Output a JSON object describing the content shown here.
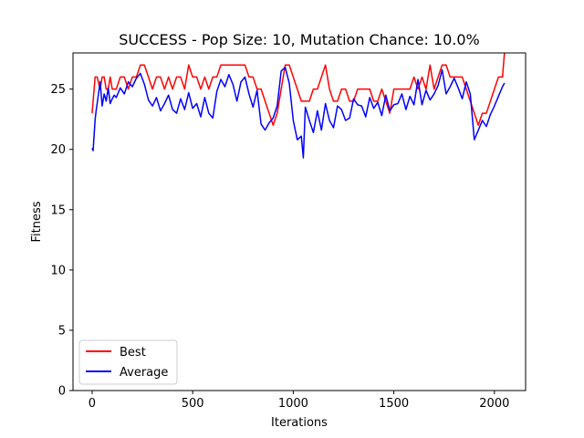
{
  "chart_data": {
    "type": "line",
    "title": "SUCCESS - Pop Size: 10, Mutation Chance: 10.0%",
    "xlabel": "Iterations",
    "ylabel": "Fitness",
    "xlim": [
      -95,
      2155
    ],
    "ylim": [
      0,
      28
    ],
    "x_ticks": [
      0,
      500,
      1000,
      1500,
      2000
    ],
    "y_ticks": [
      0,
      5,
      10,
      15,
      20,
      25
    ],
    "grid": false,
    "legend_position": "lower-left",
    "series": [
      {
        "name": "Best",
        "color": "#ff0000",
        "x": [
          0,
          15,
          25,
          40,
          50,
          60,
          70,
          80,
          90,
          100,
          110,
          120,
          140,
          160,
          180,
          200,
          220,
          240,
          260,
          280,
          300,
          320,
          340,
          360,
          380,
          400,
          420,
          440,
          460,
          480,
          500,
          520,
          540,
          560,
          580,
          600,
          620,
          640,
          660,
          680,
          700,
          720,
          740,
          760,
          780,
          800,
          820,
          840,
          860,
          880,
          900,
          920,
          940,
          960,
          980,
          1000,
          1020,
          1040,
          1060,
          1080,
          1100,
          1120,
          1140,
          1160,
          1180,
          1200,
          1220,
          1240,
          1260,
          1280,
          1300,
          1320,
          1340,
          1360,
          1380,
          1400,
          1420,
          1440,
          1460,
          1480,
          1500,
          1520,
          1540,
          1560,
          1580,
          1600,
          1620,
          1640,
          1660,
          1680,
          1700,
          1720,
          1740,
          1760,
          1780,
          1800,
          1820,
          1840,
          1860,
          1880,
          1900,
          1920,
          1940,
          1960,
          1980,
          2000,
          2020,
          2040,
          2050
        ],
        "values": [
          23,
          26,
          26,
          25,
          26,
          26,
          25,
          25,
          26,
          25,
          25,
          25,
          26,
          26,
          25,
          26,
          26,
          27,
          27,
          26,
          25,
          26,
          26,
          25,
          26,
          25,
          26,
          26,
          25,
          27,
          26,
          26,
          25,
          26,
          25,
          26,
          26,
          27,
          27,
          27,
          27,
          27,
          27,
          27,
          26,
          26,
          25,
          25,
          24,
          23,
          22,
          23,
          25,
          27,
          27,
          26,
          25,
          24,
          24,
          24,
          25,
          25,
          26,
          27,
          25,
          24,
          24,
          25,
          25,
          24,
          24,
          25,
          25,
          25,
          25,
          24,
          24,
          25,
          24,
          23,
          25,
          25,
          25,
          25,
          25,
          26,
          25,
          26,
          25,
          27,
          25,
          26,
          27,
          27,
          26,
          26,
          26,
          26,
          25,
          24,
          23,
          22,
          23,
          23,
          24,
          25,
          26,
          26,
          28
        ]
      },
      {
        "name": "Average",
        "color": "#0000ff",
        "x": [
          0,
          5,
          10,
          15,
          20,
          30,
          40,
          50,
          60,
          70,
          80,
          90,
          100,
          110,
          120,
          140,
          160,
          180,
          200,
          220,
          240,
          260,
          280,
          300,
          320,
          340,
          360,
          380,
          400,
          420,
          440,
          460,
          480,
          500,
          520,
          540,
          560,
          580,
          600,
          620,
          640,
          660,
          680,
          700,
          720,
          740,
          760,
          780,
          800,
          820,
          840,
          860,
          880,
          900,
          920,
          940,
          960,
          980,
          1000,
          1020,
          1040,
          1050,
          1060,
          1080,
          1100,
          1120,
          1140,
          1160,
          1180,
          1200,
          1220,
          1240,
          1260,
          1280,
          1300,
          1320,
          1340,
          1360,
          1380,
          1400,
          1420,
          1440,
          1460,
          1480,
          1500,
          1520,
          1540,
          1560,
          1580,
          1600,
          1620,
          1640,
          1660,
          1680,
          1700,
          1720,
          1740,
          1760,
          1780,
          1800,
          1820,
          1840,
          1860,
          1880,
          1900,
          1920,
          1940,
          1960,
          1980,
          2000,
          2020,
          2040,
          2050
        ],
        "values": [
          20.1,
          19.9,
          21.2,
          22.5,
          23.2,
          24.4,
          25.6,
          23.6,
          24.6,
          24.0,
          25.1,
          23.8,
          24.2,
          24.5,
          24.3,
          25.1,
          24.6,
          25.6,
          25.2,
          25.9,
          26.3,
          25.4,
          24.1,
          23.6,
          24.3,
          23.2,
          23.8,
          24.5,
          23.3,
          23.0,
          24.2,
          23.3,
          24.7,
          23.4,
          23.8,
          22.7,
          24.3,
          23.0,
          22.6,
          24.8,
          25.8,
          25.2,
          26.2,
          25.4,
          24.0,
          25.6,
          26.0,
          24.6,
          23.5,
          24.9,
          22.1,
          21.6,
          22.2,
          22.6,
          23.6,
          26.5,
          26.8,
          25.5,
          22.4,
          20.8,
          21.1,
          19.3,
          23.5,
          22.4,
          21.4,
          23.2,
          21.6,
          23.8,
          22.4,
          21.8,
          23.6,
          23.3,
          22.4,
          22.6,
          24.2,
          23.7,
          23.6,
          22.7,
          24.3,
          23.4,
          23.9,
          22.8,
          24.5,
          23.2,
          23.7,
          23.8,
          24.6,
          23.3,
          24.4,
          23.7,
          25.8,
          23.7,
          24.9,
          24.1,
          24.6,
          25.3,
          26.6,
          24.6,
          25.2,
          25.9,
          25.1,
          24.2,
          25.6,
          24.6,
          20.8,
          21.6,
          22.4,
          21.9,
          22.9,
          23.6,
          24.4,
          25.2,
          25.5
        ]
      }
    ]
  }
}
